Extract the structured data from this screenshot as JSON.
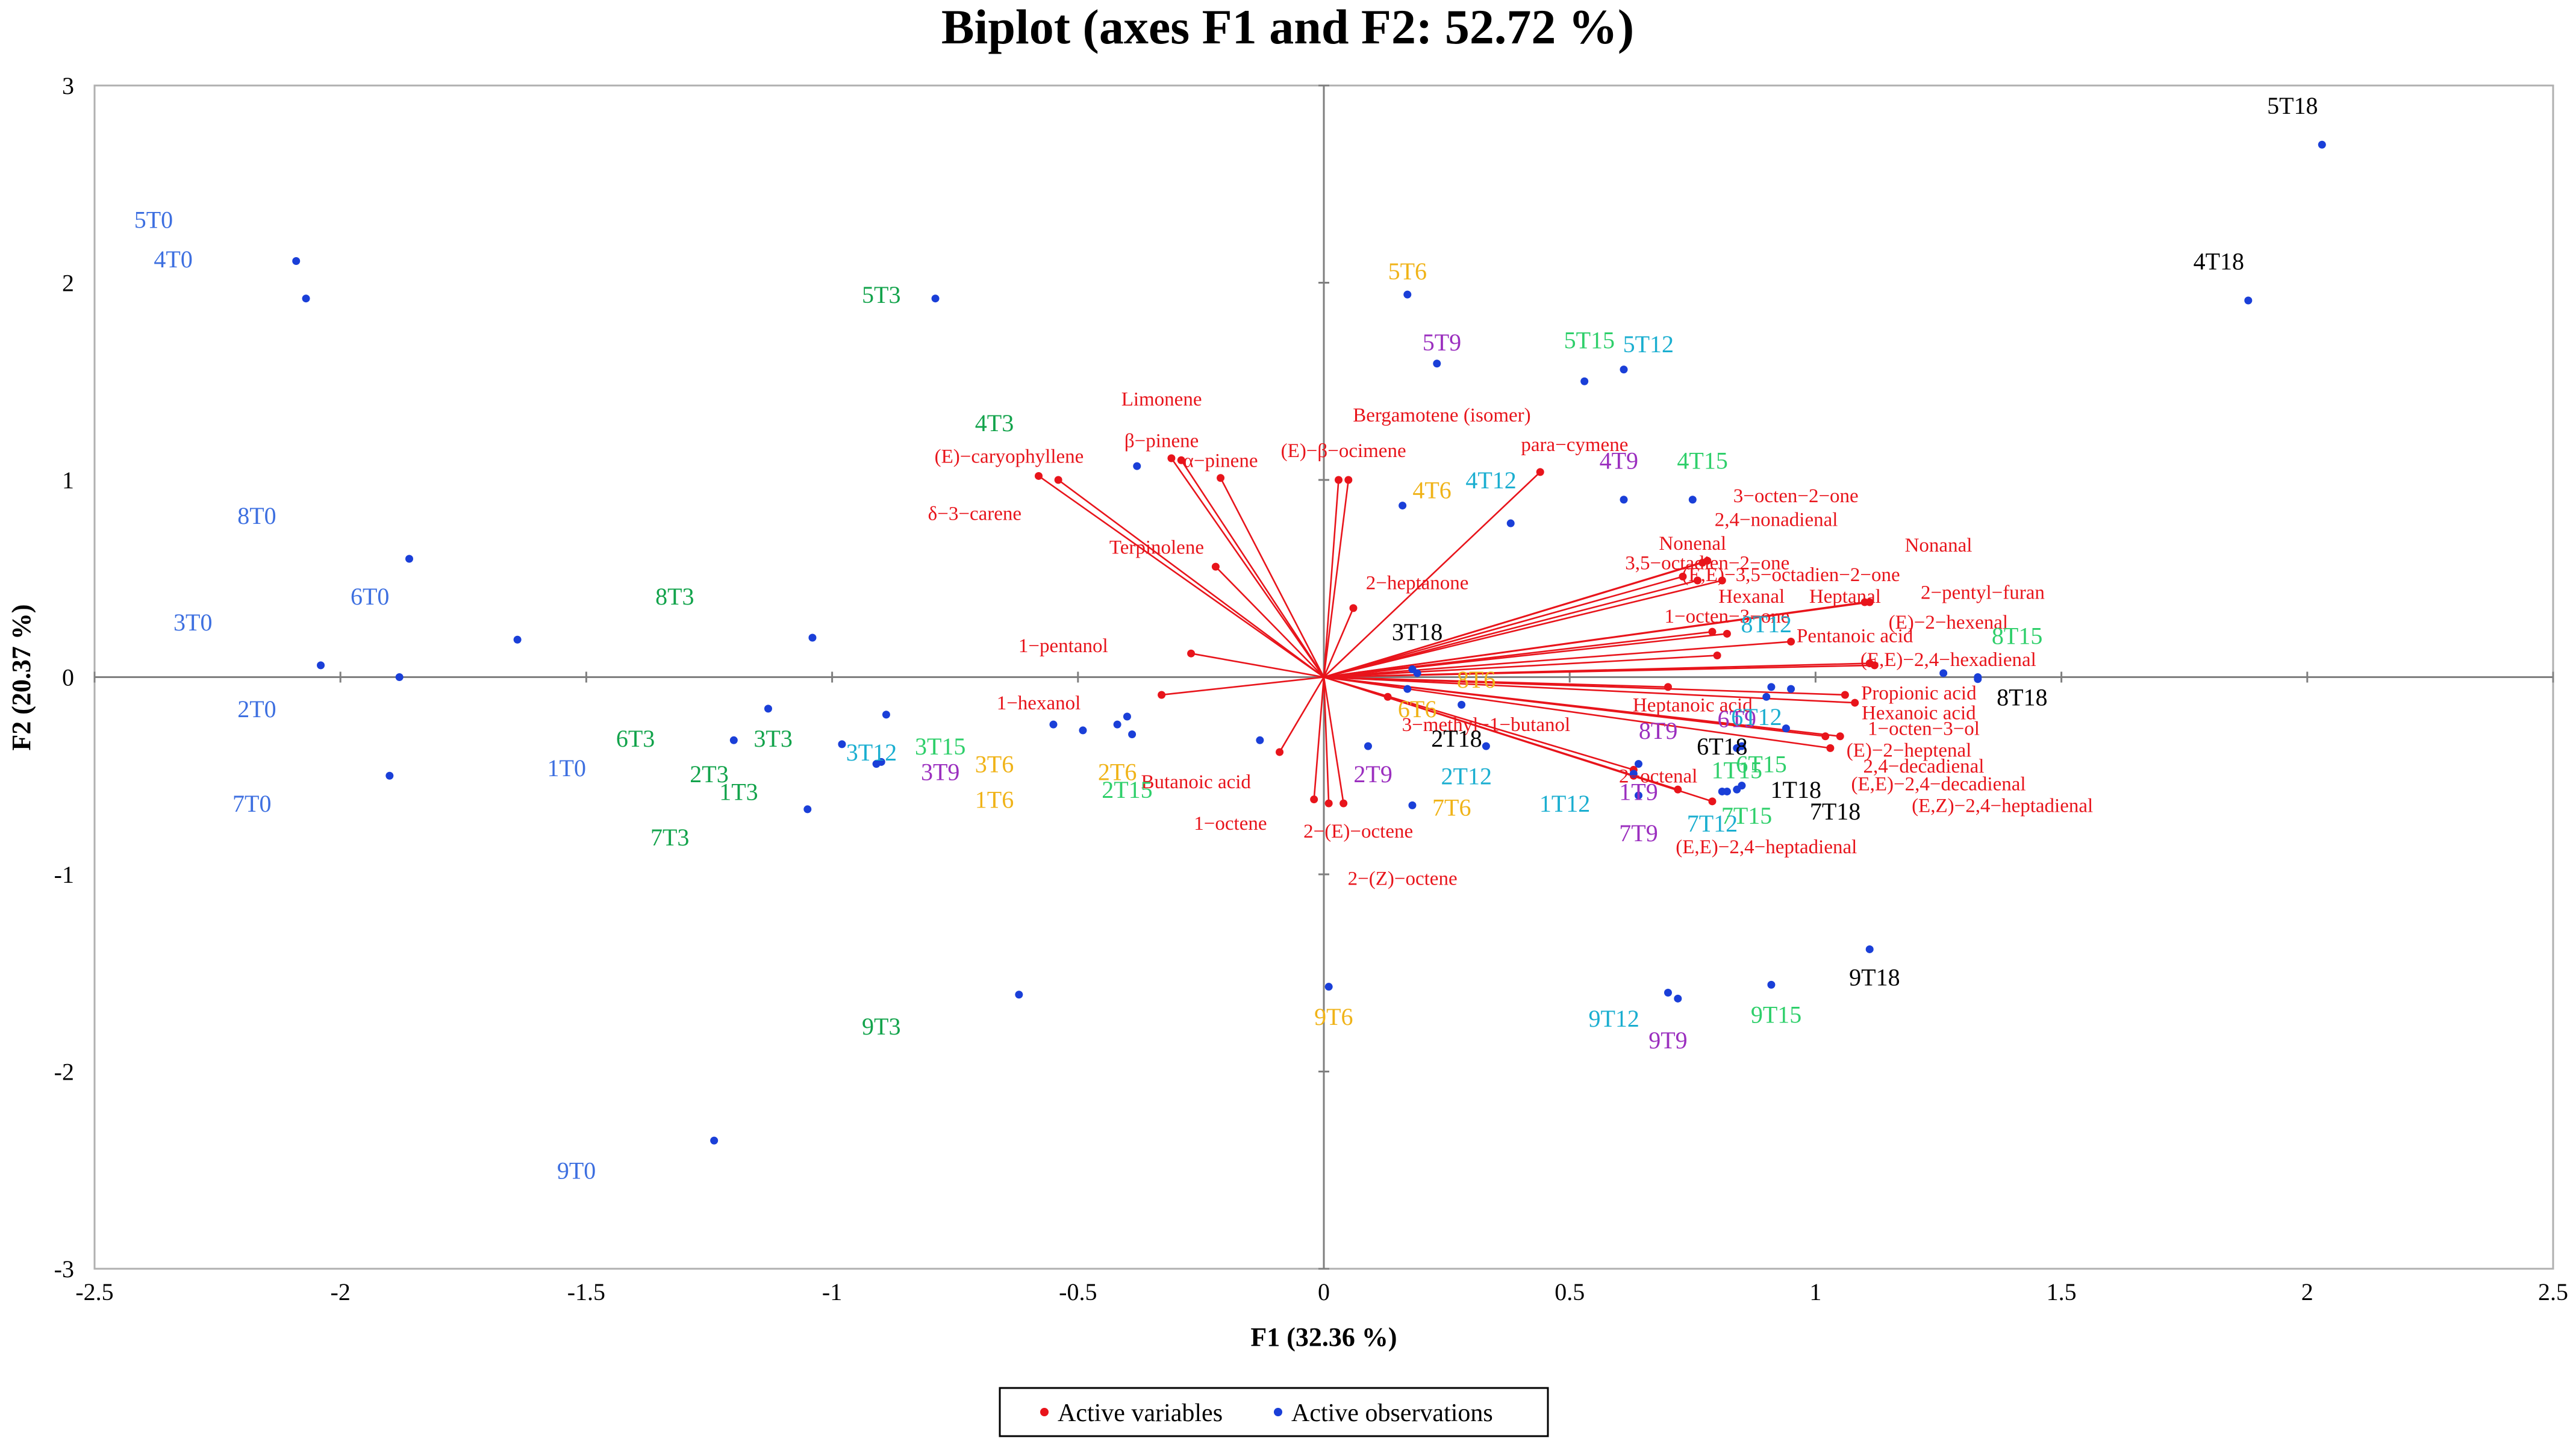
{
  "chart_data": {
    "type": "scatter",
    "title": "Biplot (axes F1 and F2: 52.72 %)",
    "xlabel": "F1 (32.36 %)",
    "ylabel": "F2 (20.37 %)",
    "xlim": [
      -2.5,
      2.5
    ],
    "ylim": [
      -3,
      3
    ],
    "xticks": [
      "-2.5",
      "-2",
      "-1.5",
      "-1",
      "-0.5",
      "0",
      "0.5",
      "1",
      "1.5",
      "2",
      "2.5"
    ],
    "xtick_values": [
      -2.5,
      -2,
      -1.5,
      -1,
      -0.5,
      0,
      0.5,
      1,
      1.5,
      2,
      2.5
    ],
    "yticks": [
      "3",
      "2",
      "1",
      "0",
      "-1",
      "-2",
      "-3"
    ],
    "ytick_values": [
      3,
      2,
      1,
      0,
      -1,
      -2,
      -3
    ],
    "grid": false,
    "legend_position": "bottom-center",
    "colors": {
      "variables": "#e8141b",
      "observations": "#1a3fd8",
      "T0": "#3d6fe0",
      "T3": "#12a34b",
      "T6": "#f0b318",
      "T9": "#9b2fbf",
      "T12": "#1aaed0",
      "T15": "#2ecf6a",
      "T18": "#000000"
    },
    "series": [
      {
        "name": "Active variables",
        "color": "#e8141b",
        "points": [
          {
            "label": "Limonene",
            "x": -0.31,
            "y": 1.11
          },
          {
            "label": "β−pinene",
            "x": -0.29,
            "y": 1.1
          },
          {
            "label": "α−pinene",
            "x": -0.21,
            "y": 1.01
          },
          {
            "label": "(E)−caryophyllene",
            "x": -0.58,
            "y": 1.02
          },
          {
            "label": "δ−3−carene",
            "x": -0.54,
            "y": 1.0
          },
          {
            "label": "Terpinolene",
            "x": -0.22,
            "y": 0.56
          },
          {
            "label": "Bergamotene (isomer)",
            "x": 0.05,
            "y": 1.0
          },
          {
            "label": "(E)−β−ocimene",
            "x": 0.03,
            "y": 1.0
          },
          {
            "label": "para−cymene",
            "x": 0.44,
            "y": 1.04
          },
          {
            "label": "2−heptanone",
            "x": 0.06,
            "y": 0.35
          },
          {
            "label": "1−pentanol",
            "x": -0.27,
            "y": 0.12
          },
          {
            "label": "1−hexanol",
            "x": -0.33,
            "y": -0.09
          },
          {
            "label": "Butanoic acid",
            "x": -0.09,
            "y": -0.38
          },
          {
            "label": "1−octene",
            "x": -0.02,
            "y": -0.62
          },
          {
            "label": "2−(E)−octene",
            "x": 0.04,
            "y": -0.64
          },
          {
            "label": "2−(Z)−octene",
            "x": 0.01,
            "y": -0.64
          },
          {
            "label": "3−methyl−1−butanol",
            "x": 0.13,
            "y": -0.1
          },
          {
            "label": "3−octen−2−one",
            "x": 0.77,
            "y": 0.58
          },
          {
            "label": "2,4−nonadienal",
            "x": 0.78,
            "y": 0.59
          },
          {
            "label": "Nonenal",
            "x": 0.73,
            "y": 0.51
          },
          {
            "label": "3,5−octadien−2−one",
            "x": 0.76,
            "y": 0.49
          },
          {
            "label": "(E,E)−3,5−octadien−2−one",
            "x": 0.81,
            "y": 0.49
          },
          {
            "label": "Nonanal",
            "x": 1.1,
            "y": 0.38
          },
          {
            "label": "2−pentyl−furan",
            "x": 1.11,
            "y": 0.38
          },
          {
            "label": "Hexanal",
            "x": 0.79,
            "y": 0.23
          },
          {
            "label": "Heptanal",
            "x": 0.82,
            "y": 0.22
          },
          {
            "label": "1−octen−3−one",
            "x": 0.8,
            "y": 0.11
          },
          {
            "label": "Pentanoic acid",
            "x": 0.95,
            "y": 0.18
          },
          {
            "label": "(E)−2−hexenal",
            "x": 1.11,
            "y": 0.07
          },
          {
            "label": "(E,E)−2,4−hexadienal",
            "x": 1.12,
            "y": 0.06
          },
          {
            "label": "Propionic acid",
            "x": 1.06,
            "y": -0.09
          },
          {
            "label": "Heptanoic acid",
            "x": 0.7,
            "y": -0.05
          },
          {
            "label": "Hexanoic acid",
            "x": 1.08,
            "y": -0.13
          },
          {
            "label": "1−octen−3−ol",
            "x": 1.02,
            "y": -0.3
          },
          {
            "label": "(E)−2−heptenal",
            "x": 1.05,
            "y": -0.3
          },
          {
            "label": "2,4−decadienal",
            "x": 1.03,
            "y": -0.36
          },
          {
            "label": "(E,E)−2,4−decadienal",
            "x": 0.63,
            "y": -0.5
          },
          {
            "label": "(E,Z)−2,4−heptadienal",
            "x": 0.79,
            "y": -0.63
          },
          {
            "label": "2−octenal",
            "x": 0.63,
            "y": -0.47
          },
          {
            "label": "(E,E)−2,4−heptadienal",
            "x": 0.72,
            "y": -0.57
          }
        ]
      },
      {
        "name": "Active observations",
        "color": "#1a3fd8",
        "points": [
          {
            "label": "5T0",
            "x": -2.09,
            "y": 2.11,
            "group": "T0",
            "lx": -2.38,
            "ly": 2.32
          },
          {
            "label": "4T0",
            "x": -2.07,
            "y": 1.92,
            "group": "T0",
            "lx": -2.34,
            "ly": 2.12
          },
          {
            "label": "8T0",
            "x": -1.86,
            "y": 0.6,
            "group": "T0",
            "lx": -2.17,
            "ly": 0.82
          },
          {
            "label": "6T0",
            "x": -1.64,
            "y": 0.19,
            "group": "T0",
            "lx": -1.94,
            "ly": 0.41
          },
          {
            "label": "3T0",
            "x": -2.04,
            "y": 0.06,
            "group": "T0",
            "lx": -2.3,
            "ly": 0.28
          },
          {
            "label": "2T0",
            "x": -1.88,
            "y": 0.0,
            "group": "T0",
            "lx": -2.17,
            "ly": -0.16
          },
          {
            "label": "1T0",
            "x": -1.9,
            "y": -0.5,
            "group": "T0",
            "lx": -1.54,
            "ly": -0.46
          },
          {
            "label": "7T0",
            "x": -1.24,
            "y": -2.35,
            "group": "T0",
            "lx": -2.18,
            "ly": -0.64
          },
          {
            "label": "9T0",
            "x": -0.62,
            "y": -1.61,
            "group": "T0",
            "lx": -1.52,
            "ly": -2.5
          },
          {
            "label": "5T3",
            "x": -0.79,
            "y": 1.92,
            "group": "T3",
            "lx": -0.9,
            "ly": 1.94
          },
          {
            "label": "4T3",
            "x": -0.38,
            "y": 1.07,
            "group": "T3",
            "lx": -0.67,
            "ly": 1.29
          },
          {
            "label": "8T3",
            "x": -1.04,
            "y": 0.2,
            "group": "T3",
            "lx": -1.32,
            "ly": 0.41
          },
          {
            "label": "3T3",
            "x": -1.13,
            "y": -0.16,
            "group": "T3",
            "lx": -1.12,
            "ly": -0.31
          },
          {
            "label": "6T3",
            "x": -1.2,
            "y": -0.32,
            "group": "T3",
            "lx": -1.4,
            "ly": -0.31
          },
          {
            "label": "2T3",
            "x": -0.98,
            "y": -0.34,
            "group": "T3",
            "lx": -1.25,
            "ly": -0.49
          },
          {
            "label": "1T3",
            "x": -1.05,
            "y": -0.67,
            "group": "T3",
            "lx": -1.19,
            "ly": -0.58
          },
          {
            "label": "7T3",
            "x": -0.9,
            "y": -0.43,
            "group": "T3",
            "lx": -1.33,
            "ly": -0.81
          },
          {
            "label": "9T3",
            "x": -0.89,
            "y": -0.19,
            "group": "T3",
            "lx": -0.9,
            "ly": -1.77
          },
          {
            "label": "3T15",
            "x": -0.55,
            "y": -0.24,
            "group": "T15",
            "lx": -0.78,
            "ly": -0.35
          },
          {
            "label": "2T15",
            "x": -0.49,
            "y": -0.27,
            "group": "T15",
            "lx": -0.4,
            "ly": -0.57
          },
          {
            "label": "5T6",
            "x": 0.17,
            "y": 1.94,
            "group": "T6",
            "lx": 0.17,
            "ly": 2.06
          },
          {
            "label": "4T6",
            "x": 0.16,
            "y": 0.87,
            "group": "T6",
            "lx": 0.22,
            "ly": 0.95
          },
          {
            "label": "3T6",
            "x": -0.4,
            "y": -0.2,
            "group": "T6",
            "lx": -0.67,
            "ly": -0.44
          },
          {
            "label": "2T6",
            "x": -0.39,
            "y": -0.29,
            "group": "T6",
            "lx": -0.42,
            "ly": -0.48
          },
          {
            "label": "1T6",
            "x": -0.13,
            "y": -0.32,
            "group": "T6",
            "lx": -0.67,
            "ly": -0.62
          },
          {
            "label": "7T6",
            "x": 0.18,
            "y": -0.65,
            "group": "T6",
            "lx": 0.26,
            "ly": -0.66
          },
          {
            "label": "9T6",
            "x": 0.01,
            "y": -1.57,
            "group": "T6",
            "lx": 0.02,
            "ly": -1.72
          },
          {
            "label": "8T6",
            "x": 0.19,
            "y": 0.02,
            "group": "T6",
            "lx": 0.31,
            "ly": -0.01
          },
          {
            "label": "6T6",
            "x": 0.17,
            "y": -0.06,
            "group": "T6",
            "lx": 0.19,
            "ly": -0.16
          },
          {
            "label": "5T9",
            "x": 0.23,
            "y": 1.59,
            "group": "T9",
            "lx": 0.24,
            "ly": 1.7
          },
          {
            "label": "4T9",
            "x": 0.61,
            "y": 0.9,
            "group": "T9",
            "lx": 0.6,
            "ly": 1.1
          },
          {
            "label": "3T9",
            "x": -0.91,
            "y": -0.44,
            "group": "T9",
            "lx": -0.78,
            "ly": -0.48
          },
          {
            "label": "2T9",
            "x": 0.09,
            "y": -0.35,
            "group": "T9",
            "lx": 0.1,
            "ly": -0.49
          },
          {
            "label": "1T9",
            "x": 0.63,
            "y": -0.49,
            "group": "T9",
            "lx": 0.64,
            "ly": -0.58
          },
          {
            "label": "7T9",
            "x": 0.64,
            "y": -0.6,
            "group": "T9",
            "lx": 0.64,
            "ly": -0.79
          },
          {
            "label": "8T9",
            "x": 0.85,
            "y": -0.35,
            "group": "T9",
            "lx": 0.68,
            "ly": -0.27
          },
          {
            "label": "6T9",
            "x": 0.84,
            "y": -0.36,
            "group": "T9",
            "lx": 0.84,
            "ly": -0.21
          },
          {
            "label": "9T9",
            "x": 0.72,
            "y": -1.63,
            "group": "T9",
            "lx": 0.7,
            "ly": -1.84
          },
          {
            "label": "5T12",
            "x": 0.61,
            "y": 1.56,
            "group": "T12",
            "lx": 0.66,
            "ly": 1.69
          },
          {
            "label": "4T12",
            "x": 0.38,
            "y": 0.78,
            "group": "T12",
            "lx": 0.34,
            "ly": 1.0
          },
          {
            "label": "8T12",
            "x": 1.26,
            "y": 0.02,
            "group": "T12",
            "lx": 0.9,
            "ly": 0.27
          },
          {
            "label": "6T12",
            "x": 0.91,
            "y": -0.05,
            "group": "T12",
            "lx": 0.88,
            "ly": -0.2
          },
          {
            "label": "3T12",
            "x": -0.42,
            "y": -0.24,
            "group": "T12",
            "lx": -0.92,
            "ly": -0.38
          },
          {
            "label": "2T12",
            "x": 0.33,
            "y": -0.35,
            "group": "T12",
            "lx": 0.29,
            "ly": -0.5
          },
          {
            "label": "1T12",
            "x": 0.64,
            "y": -0.44,
            "group": "T12",
            "lx": 0.49,
            "ly": -0.64
          },
          {
            "label": "7T12",
            "x": 0.84,
            "y": -0.57,
            "group": "T12",
            "lx": 0.79,
            "ly": -0.74
          },
          {
            "label": "9T12",
            "x": 0.7,
            "y": -1.6,
            "group": "T12",
            "lx": 0.59,
            "ly": -1.73
          },
          {
            "label": "5T15",
            "x": 0.53,
            "y": 1.5,
            "group": "T15",
            "lx": 0.54,
            "ly": 1.71
          },
          {
            "label": "4T15",
            "x": 0.75,
            "y": 0.9,
            "group": "T15",
            "lx": 0.77,
            "ly": 1.1
          },
          {
            "label": "8T15",
            "x": 1.33,
            "y": 0.0,
            "group": "T15",
            "lx": 1.41,
            "ly": 0.21
          },
          {
            "label": "6T15",
            "x": 0.94,
            "y": -0.26,
            "group": "T15",
            "lx": 0.89,
            "ly": -0.44
          },
          {
            "label": "1T15",
            "x": 0.82,
            "y": -0.58,
            "group": "T15",
            "lx": 0.84,
            "ly": -0.47
          },
          {
            "label": "7T15",
            "x": 0.85,
            "y": -0.55,
            "group": "T15",
            "lx": 0.86,
            "ly": -0.7
          },
          {
            "label": "9T15",
            "x": 0.91,
            "y": -1.56,
            "group": "T15",
            "lx": 0.92,
            "ly": -1.71
          },
          {
            "label": "5T18",
            "x": 2.03,
            "y": 2.7,
            "group": "T18",
            "lx": 1.97,
            "ly": 2.9
          },
          {
            "label": "4T18",
            "x": 1.88,
            "y": 1.91,
            "group": "T18",
            "lx": 1.82,
            "ly": 2.11
          },
          {
            "label": "3T18",
            "x": 0.18,
            "y": 0.04,
            "group": "T18",
            "lx": 0.19,
            "ly": 0.23
          },
          {
            "label": "8T18",
            "x": 1.33,
            "y": -0.01,
            "group": "T18",
            "lx": 1.42,
            "ly": -0.1
          },
          {
            "label": "2T18",
            "x": 0.28,
            "y": -0.14,
            "group": "T18",
            "lx": 0.27,
            "ly": -0.31
          },
          {
            "label": "6T18",
            "x": 0.9,
            "y": -0.1,
            "group": "T18",
            "lx": 0.81,
            "ly": -0.35
          },
          {
            "label": "1T18",
            "x": 0.95,
            "y": -0.06,
            "group": "T18",
            "lx": 0.96,
            "ly": -0.57
          },
          {
            "label": "7T18",
            "x": 0.81,
            "y": -0.58,
            "group": "T18",
            "lx": 1.04,
            "ly": -0.68
          },
          {
            "label": "9T18",
            "x": 1.11,
            "y": -1.38,
            "group": "T18",
            "lx": 1.12,
            "ly": -1.52
          }
        ]
      }
    ],
    "var_label_pos": [
      [
        -0.33,
        1.41
      ],
      [
        -0.33,
        1.2
      ],
      [
        -0.21,
        1.1
      ],
      [
        -0.64,
        1.12
      ],
      [
        -0.71,
        0.83
      ],
      [
        -0.34,
        0.66
      ],
      [
        0.24,
        1.33
      ],
      [
        0.04,
        1.15
      ],
      [
        0.51,
        1.18
      ],
      [
        0.19,
        0.48
      ],
      [
        -0.53,
        0.16
      ],
      [
        -0.58,
        -0.13
      ],
      [
        -0.26,
        -0.53
      ],
      [
        -0.19,
        -0.74
      ],
      [
        0.07,
        -0.78
      ],
      [
        0.16,
        -1.02
      ],
      [
        0.33,
        -0.24
      ],
      [
        0.96,
        0.92
      ],
      [
        0.92,
        0.8
      ],
      [
        0.75,
        0.68
      ],
      [
        0.78,
        0.58
      ],
      [
        0.95,
        0.52
      ],
      [
        1.25,
        0.67
      ],
      [
        1.34,
        0.43
      ],
      [
        0.87,
        0.41
      ],
      [
        1.06,
        0.41
      ],
      [
        0.82,
        0.31
      ],
      [
        1.08,
        0.21
      ],
      [
        1.27,
        0.28
      ],
      [
        1.27,
        0.09
      ],
      [
        1.21,
        -0.08
      ],
      [
        0.75,
        -0.14
      ],
      [
        1.21,
        -0.18
      ],
      [
        1.22,
        -0.26
      ],
      [
        1.19,
        -0.37
      ],
      [
        1.22,
        -0.45
      ],
      [
        1.25,
        -0.54
      ],
      [
        1.38,
        -0.65
      ],
      [
        0.68,
        -0.5
      ],
      [
        0.9,
        -0.86
      ]
    ]
  },
  "legend": {
    "variables_label": "Active variables",
    "observations_label": "Active observations"
  }
}
